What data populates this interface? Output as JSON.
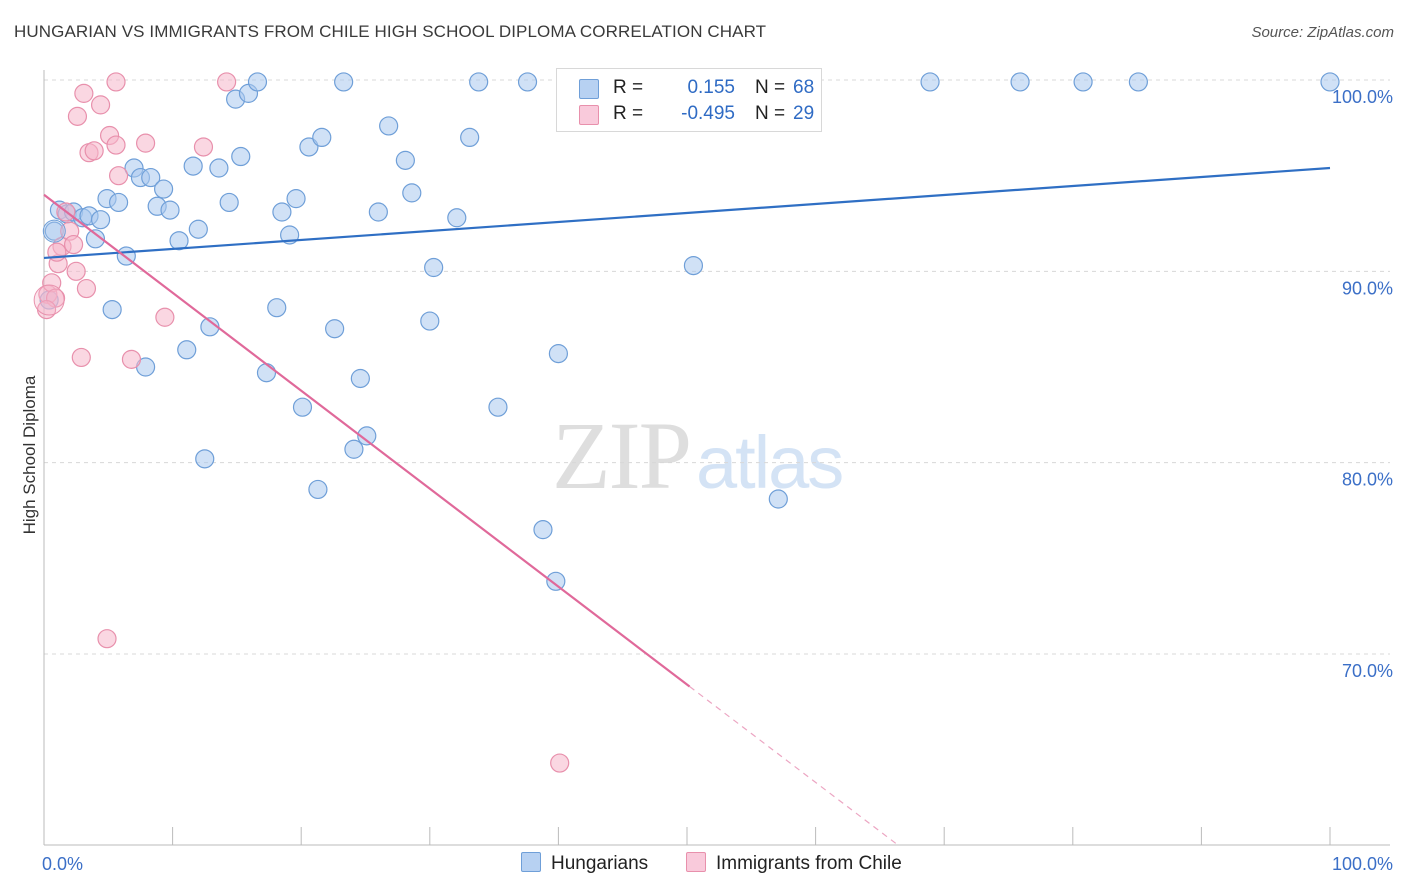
{
  "header": {
    "title": "HUNGARIAN VS IMMIGRANTS FROM CHILE HIGH SCHOOL DIPLOMA CORRELATION CHART",
    "source": "Source: ZipAtlas.com"
  },
  "watermark": {
    "zip": "ZIP",
    "atlas": "atlas"
  },
  "legend": {
    "rows": [
      {
        "r_label": "R =",
        "r_value": "0.155",
        "n_label": "N =",
        "n_value": "68"
      },
      {
        "r_label": "R =",
        "r_value": "-0.495",
        "n_label": "N =",
        "n_value": "29"
      }
    ]
  },
  "bottom_legend": {
    "series1": "Hungarians",
    "series2": "Immigrants from Chile"
  },
  "colors": {
    "blue_fill": "#a9c8ef",
    "blue_stroke": "#6f9fd8",
    "blue_line": "#2f6fc4",
    "pink_fill": "#f6b7cb",
    "pink_stroke": "#e890ac",
    "pink_line": "#e0699a",
    "grid": "#d8d8d8",
    "tick_text": "#3b6fc7"
  },
  "chart_data": {
    "type": "scatter",
    "title": "HUNGARIAN VS IMMIGRANTS FROM CHILE HIGH SCHOOL DIPLOMA CORRELATION CHART",
    "xlabel": "",
    "ylabel": "High School Diploma",
    "xlim": [
      0,
      100
    ],
    "ylim": [
      60,
      101.5
    ],
    "x_tick_labels": [
      "0.0%",
      "100.0%"
    ],
    "y_ticks": [
      {
        "value": 100,
        "label": "100.0%"
      },
      {
        "value": 90,
        "label": "90.0%"
      },
      {
        "value": 80,
        "label": "80.0%"
      },
      {
        "value": 70,
        "label": "70.0%"
      }
    ],
    "grid": "horizontal dashed",
    "series": [
      {
        "name": "Hungarians",
        "r": 0.155,
        "n": 68,
        "trend": {
          "x": [
            0,
            100
          ],
          "y": [
            90.7,
            95.4
          ]
        },
        "points": [
          [
            0.8,
            92.1
          ],
          [
            1.2,
            93.2
          ],
          [
            1.8,
            93.0
          ],
          [
            2.3,
            93.1
          ],
          [
            3.0,
            92.8
          ],
          [
            3.5,
            92.9
          ],
          [
            4.0,
            91.7
          ],
          [
            4.4,
            92.7
          ],
          [
            4.9,
            93.8
          ],
          [
            5.3,
            88.0
          ],
          [
            5.8,
            93.6
          ],
          [
            6.4,
            90.8
          ],
          [
            7.0,
            95.4
          ],
          [
            7.5,
            94.9
          ],
          [
            7.9,
            85.0
          ],
          [
            8.3,
            94.9
          ],
          [
            8.8,
            93.4
          ],
          [
            9.3,
            94.3
          ],
          [
            9.8,
            93.2
          ],
          [
            10.5,
            91.6
          ],
          [
            11.1,
            85.9
          ],
          [
            11.6,
            95.5
          ],
          [
            12.0,
            92.2
          ],
          [
            12.5,
            80.2
          ],
          [
            12.9,
            87.1
          ],
          [
            13.6,
            95.4
          ],
          [
            14.4,
            93.6
          ],
          [
            14.9,
            99.0
          ],
          [
            15.3,
            96.0
          ],
          [
            15.9,
            99.3
          ],
          [
            16.6,
            99.9
          ],
          [
            17.3,
            84.7
          ],
          [
            18.1,
            88.1
          ],
          [
            18.5,
            93.1
          ],
          [
            19.1,
            91.9
          ],
          [
            19.6,
            93.8
          ],
          [
            20.1,
            82.9
          ],
          [
            20.6,
            96.5
          ],
          [
            21.3,
            78.6
          ],
          [
            21.6,
            97.0
          ],
          [
            22.6,
            87.0
          ],
          [
            23.3,
            99.9
          ],
          [
            24.1,
            80.7
          ],
          [
            24.6,
            84.4
          ],
          [
            25.1,
            81.4
          ],
          [
            26.0,
            93.1
          ],
          [
            26.8,
            97.6
          ],
          [
            28.1,
            95.8
          ],
          [
            28.6,
            94.1
          ],
          [
            30.0,
            87.4
          ],
          [
            30.3,
            90.2
          ],
          [
            32.1,
            92.8
          ],
          [
            33.1,
            97.0
          ],
          [
            33.8,
            99.9
          ],
          [
            35.3,
            82.9
          ],
          [
            37.6,
            99.9
          ],
          [
            38.8,
            76.5
          ],
          [
            39.8,
            73.8
          ],
          [
            40.0,
            85.7
          ],
          [
            50.5,
            90.3
          ],
          [
            54.1,
            99.9
          ],
          [
            57.1,
            78.1
          ],
          [
            68.9,
            99.9
          ],
          [
            75.9,
            99.9
          ],
          [
            80.8,
            99.9
          ],
          [
            85.1,
            99.9
          ],
          [
            100.0,
            99.9
          ],
          [
            0.4,
            88.5
          ]
        ]
      },
      {
        "name": "Immigrants from Chile",
        "r": -0.495,
        "n": 29,
        "trend": {
          "x": [
            0,
            50.2
          ],
          "y": [
            94.0,
            68.3
          ]
        },
        "points": [
          [
            0.3,
            88.8
          ],
          [
            0.6,
            89.4
          ],
          [
            0.9,
            88.6
          ],
          [
            1.1,
            90.4
          ],
          [
            1.4,
            91.3
          ],
          [
            1.7,
            93.1
          ],
          [
            2.0,
            92.1
          ],
          [
            2.3,
            91.4
          ],
          [
            2.5,
            90.0
          ],
          [
            2.6,
            98.1
          ],
          [
            2.9,
            85.5
          ],
          [
            3.1,
            99.3
          ],
          [
            3.3,
            89.1
          ],
          [
            3.5,
            96.2
          ],
          [
            3.9,
            96.3
          ],
          [
            4.4,
            98.7
          ],
          [
            4.9,
            70.8
          ],
          [
            5.1,
            97.1
          ],
          [
            5.6,
            96.6
          ],
          [
            5.8,
            95.0
          ],
          [
            5.6,
            99.9
          ],
          [
            6.8,
            85.4
          ],
          [
            7.9,
            96.7
          ],
          [
            9.4,
            87.6
          ],
          [
            12.4,
            96.5
          ],
          [
            14.2,
            99.9
          ],
          [
            40.1,
            64.3
          ],
          [
            0.2,
            88.0
          ],
          [
            1.0,
            91.0
          ]
        ]
      }
    ]
  }
}
